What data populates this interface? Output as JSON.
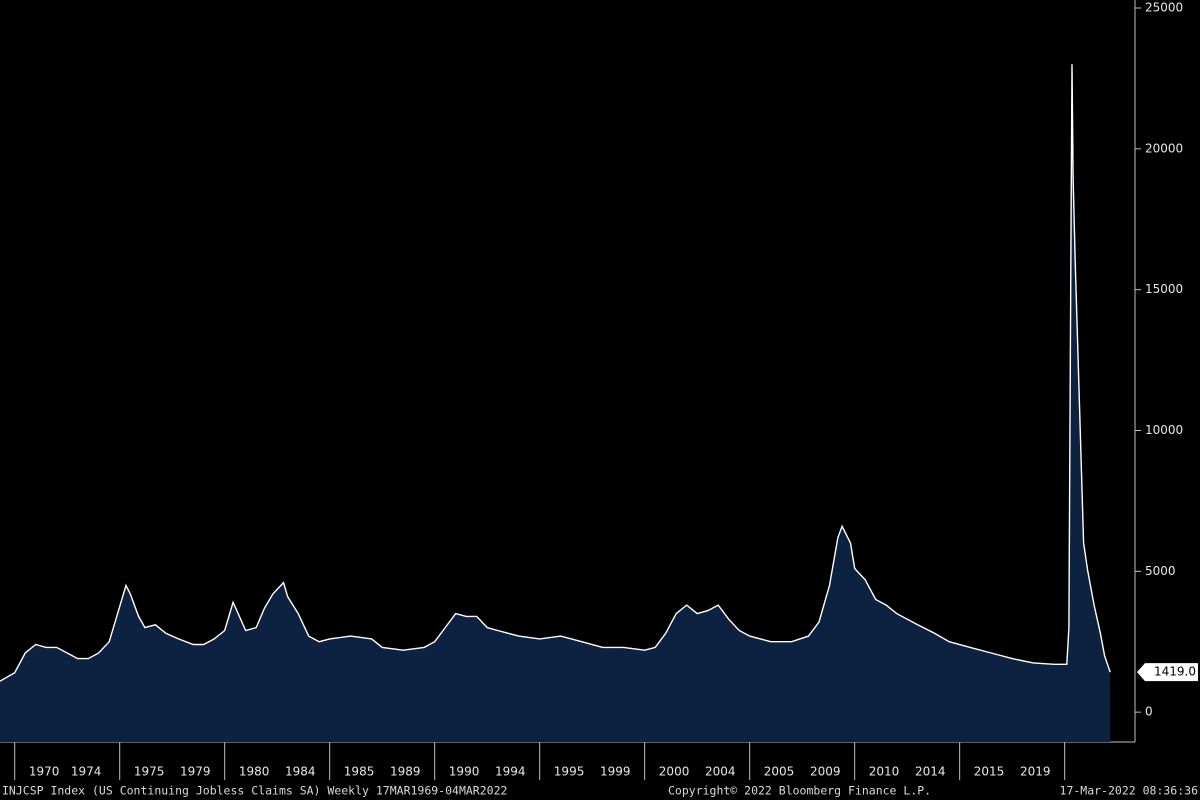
{
  "chart_data": {
    "type": "area",
    "series": [
      {
        "name": "INJCSP Index",
        "color": "#ffffff",
        "fill": "#0d2240",
        "x": [
          1969.3,
          1970.0,
          1970.5,
          1971.0,
          1971.5,
          1972.0,
          1972.5,
          1973.0,
          1973.5,
          1974.0,
          1974.5,
          1974.9,
          1975.3,
          1975.5,
          1975.9,
          1976.2,
          1976.7,
          1977.2,
          1977.8,
          1978.5,
          1979.0,
          1979.5,
          1980.0,
          1980.4,
          1980.7,
          1981.0,
          1981.5,
          1981.9,
          1982.3,
          1982.8,
          1983.0,
          1983.5,
          1984.0,
          1984.5,
          1985.0,
          1986.0,
          1987.0,
          1987.5,
          1988.5,
          1989.5,
          1990.0,
          1990.7,
          1991.0,
          1991.5,
          1992.0,
          1992.5,
          1993.0,
          1994.0,
          1995.0,
          1996.0,
          1997.0,
          1998.0,
          1999.0,
          2000.0,
          2000.5,
          2001.0,
          2001.5,
          2002.0,
          2002.5,
          2003.0,
          2003.5,
          2004.0,
          2004.5,
          2005.0,
          2006.0,
          2007.0,
          2007.8,
          2008.3,
          2008.8,
          2009.2,
          2009.4,
          2009.8,
          2010.0,
          2010.5,
          2011.0,
          2011.5,
          2012.0,
          2013.0,
          2013.8,
          2014.5,
          2015.5,
          2016.5,
          2017.5,
          2018.5,
          2019.5,
          2020.1,
          2020.2,
          2020.3,
          2020.35,
          2020.4,
          2020.5,
          2020.7,
          2020.9,
          2021.1,
          2021.4,
          2021.7,
          2021.9,
          2022.17
        ],
        "values": [
          1100,
          1400,
          2100,
          2400,
          2300,
          2300,
          2100,
          1900,
          1900,
          2100,
          2500,
          3500,
          4500,
          4200,
          3400,
          3000,
          3100,
          2800,
          2600,
          2400,
          2400,
          2600,
          2900,
          3900,
          3400,
          2900,
          3000,
          3700,
          4200,
          4600,
          4100,
          3500,
          2700,
          2500,
          2600,
          2700,
          2600,
          2300,
          2200,
          2300,
          2500,
          3200,
          3500,
          3400,
          3400,
          3000,
          2900,
          2700,
          2600,
          2700,
          2500,
          2300,
          2300,
          2200,
          2300,
          2800,
          3500,
          3800,
          3500,
          3600,
          3800,
          3300,
          2900,
          2700,
          2500,
          2500,
          2700,
          3200,
          4500,
          6200,
          6600,
          6000,
          5100,
          4700,
          4000,
          3800,
          3500,
          3100,
          2800,
          2500,
          2300,
          2100,
          1900,
          1750,
          1700,
          1700,
          3000,
          17000,
          23000,
          19000,
          16000,
          11000,
          6000,
          5000,
          3800,
          2800,
          2000,
          1419
        ]
      }
    ],
    "last_label": "1419.0",
    "ylim": [
      -1060,
      25000
    ],
    "yticks": [
      0,
      5000,
      10000,
      15000,
      20000,
      25000
    ],
    "xlim": [
      1969.3,
      2023.35
    ],
    "x_separators": [
      1970,
      1975,
      1980,
      1985,
      1990,
      1995,
      2000,
      2005,
      2010,
      2015,
      2020
    ],
    "xticks": [
      {
        "value": 1971.4,
        "label": "1970"
      },
      {
        "value": 1973.4,
        "label": "1974"
      },
      {
        "value": 1976.4,
        "label": "1975"
      },
      {
        "value": 1978.6,
        "label": "1979"
      },
      {
        "value": 1981.4,
        "label": "1980"
      },
      {
        "value": 1983.6,
        "label": "1984"
      },
      {
        "value": 1986.4,
        "label": "1985"
      },
      {
        "value": 1988.6,
        "label": "1989"
      },
      {
        "value": 1991.4,
        "label": "1990"
      },
      {
        "value": 1993.6,
        "label": "1994"
      },
      {
        "value": 1996.4,
        "label": "1995"
      },
      {
        "value": 1998.6,
        "label": "1999"
      },
      {
        "value": 2001.4,
        "label": "2000"
      },
      {
        "value": 2003.6,
        "label": "2004"
      },
      {
        "value": 2006.4,
        "label": "2005"
      },
      {
        "value": 2008.6,
        "label": "2009"
      },
      {
        "value": 2011.4,
        "label": "2010"
      },
      {
        "value": 2013.6,
        "label": "2014"
      },
      {
        "value": 2016.4,
        "label": "2015"
      },
      {
        "value": 2018.6,
        "label": "2019"
      }
    ],
    "footer": {
      "left": "INJCSP Index (US Continuing Jobless Claims SA)  Weekly 17MAR1969-04MAR2022",
      "middle": "Copyright© 2022 Bloomberg Finance L.P.",
      "right": "17-Mar-2022 08:36:36"
    }
  }
}
